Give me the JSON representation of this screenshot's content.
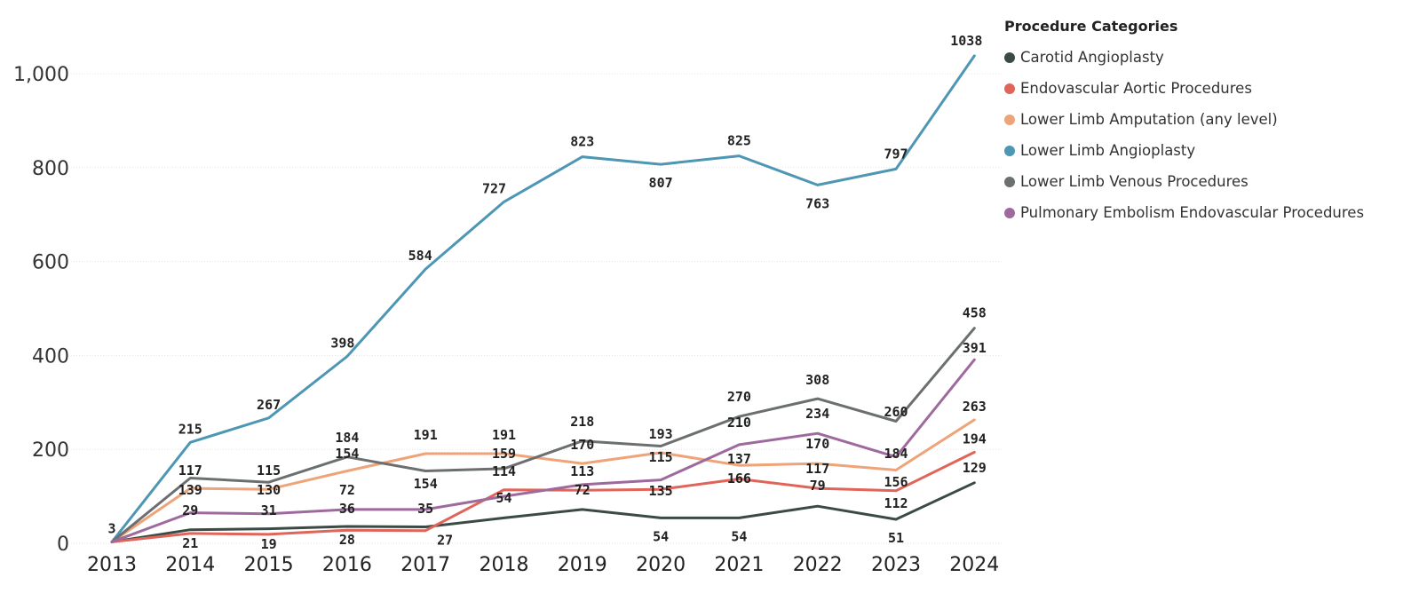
{
  "chart_data": {
    "type": "line",
    "title": "",
    "xlabel": "",
    "ylabel": "",
    "categories": [
      "2013",
      "2014",
      "2015",
      "2016",
      "2017",
      "2018",
      "2019",
      "2020",
      "2021",
      "2022",
      "2023",
      "2024"
    ],
    "y_ticks": [
      0,
      200,
      400,
      600,
      800,
      1000
    ],
    "y_tick_labels": [
      "0",
      "200",
      "400",
      "600",
      "800",
      "1,000"
    ],
    "ylim": [
      0,
      1000
    ],
    "grid": true,
    "legend": {
      "title": "Procedure Categories",
      "placement": "top-right"
    },
    "series": [
      {
        "name": "Carotid Angioplasty",
        "color": "#3b4a45",
        "values": [
          3,
          29,
          31,
          36,
          35,
          54,
          72,
          54,
          54,
          79,
          51,
          129
        ],
        "labels": [
          "",
          "",
          "",
          "",
          "",
          "",
          "",
          "54",
          "54",
          "",
          "51",
          "129"
        ]
      },
      {
        "name": "Endovascular Aortic Procedures",
        "color": "#e0645a",
        "values": [
          3,
          21,
          19,
          28,
          27,
          114,
          113,
          115,
          137,
          117,
          112,
          194
        ],
        "labels": [
          "",
          "21",
          "19",
          "28",
          "27",
          "",
          "",
          "",
          "",
          "",
          "",
          "194"
        ]
      },
      {
        "name": "Lower Limb Amputation (any level)",
        "color": "#eea378",
        "values": [
          3,
          117,
          115,
          154,
          191,
          191,
          170,
          193,
          166,
          170,
          156,
          263
        ],
        "labels": [
          "",
          "",
          "",
          "",
          "",
          "",
          "",
          "",
          "",
          "",
          "",
          "263"
        ]
      },
      {
        "name": "Lower Limb Angioplasty",
        "color": "#4d96b4",
        "values": [
          3,
          215,
          267,
          398,
          584,
          727,
          823,
          807,
          825,
          763,
          797,
          1038
        ],
        "labels": [
          "3",
          "215",
          "267",
          "398",
          "584",
          "727",
          "823",
          "807",
          "825",
          "763",
          "797",
          "1038"
        ]
      },
      {
        "name": "Lower Limb Venous Procedures",
        "color": "#6b6f70",
        "values": [
          3,
          139,
          130,
          184,
          154,
          159,
          218,
          207,
          270,
          308,
          260,
          458
        ],
        "labels": [
          "",
          "",
          "",
          "",
          "",
          "",
          "",
          "",
          "",
          "",
          "",
          "458"
        ]
      },
      {
        "name": "Pulmonary Embolism Endovascular Procedures",
        "color": "#9e6a9e",
        "values": [
          3,
          65,
          63,
          72,
          72,
          100,
          125,
          135,
          210,
          234,
          184,
          391
        ],
        "labels": [
          "",
          "",
          "",
          "",
          "",
          "",
          "",
          "",
          "",
          "",
          "",
          "391"
        ]
      }
    ],
    "annotations": [
      {
        "x": 1,
        "text": "117"
      },
      {
        "x": 1,
        "text": "139"
      },
      {
        "x": 1,
        "text": "29"
      },
      {
        "x": 2,
        "text": "115"
      },
      {
        "x": 2,
        "text": "130"
      },
      {
        "x": 2,
        "text": "31"
      },
      {
        "x": 3,
        "text": "184"
      },
      {
        "x": 3,
        "text": "154"
      },
      {
        "x": 3,
        "text": "72"
      },
      {
        "x": 3,
        "text": "36"
      },
      {
        "x": 4,
        "text": "191"
      },
      {
        "x": 4,
        "text": "154"
      },
      {
        "x": 4,
        "text": "35"
      },
      {
        "x": 5,
        "text": "191"
      },
      {
        "x": 5,
        "text": "159"
      },
      {
        "x": 5,
        "text": "114"
      },
      {
        "x": 5,
        "text": "54"
      },
      {
        "x": 6,
        "text": "218"
      },
      {
        "x": 6,
        "text": "170"
      },
      {
        "x": 6,
        "text": "113"
      },
      {
        "x": 6,
        "text": "72"
      },
      {
        "x": 7,
        "text": "193"
      },
      {
        "x": 7,
        "text": "115"
      },
      {
        "x": 7,
        "text": "135"
      },
      {
        "x": 8,
        "text": "270"
      },
      {
        "x": 8,
        "text": "210"
      },
      {
        "x": 8,
        "text": "137"
      },
      {
        "x": 8,
        "text": "166"
      },
      {
        "x": 9,
        "text": "308"
      },
      {
        "x": 9,
        "text": "234"
      },
      {
        "x": 9,
        "text": "170"
      },
      {
        "x": 9,
        "text": "117"
      },
      {
        "x": 9,
        "text": "79"
      },
      {
        "x": 10,
        "text": "260"
      },
      {
        "x": 10,
        "text": "184"
      },
      {
        "x": 10,
        "text": "156"
      },
      {
        "x": 10,
        "text": "112"
      }
    ]
  }
}
